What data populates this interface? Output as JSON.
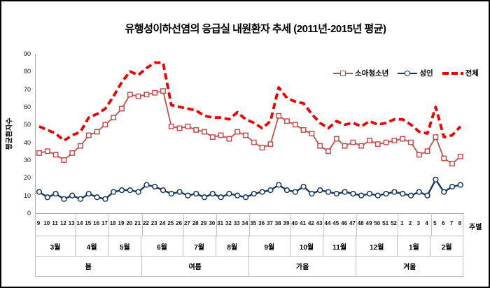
{
  "title": "유행성이하선염의 응급실 내원환자 추세 (2011년-2015년 평균)",
  "legend": {
    "children_label": "소아청소년",
    "adults_label": "성인",
    "total_label": "전체"
  },
  "colors": {
    "children": "#C0504D",
    "adults": "#17375E",
    "total": "#EE0000",
    "axis": "#A6A6A6",
    "table_border": "#BFBFBF",
    "text": "#000000"
  },
  "chart_data": {
    "type": "line",
    "title": "유행성이하선염의 응급실 내원환자 추세 (2011년-2015년 평균)",
    "xlabel": "주별",
    "ylabel": "평균환자수",
    "ylim": [
      0,
      90
    ],
    "ytick_step": 10,
    "yticks": [
      "0",
      "10",
      "20",
      "30",
      "40",
      "50",
      "60",
      "70",
      "80",
      "90"
    ],
    "grid": false,
    "legend_position": "top-right",
    "categories": [
      "9",
      "10",
      "11",
      "12",
      "13",
      "14",
      "15",
      "16",
      "17",
      "18",
      "19",
      "20",
      "21",
      "22",
      "23",
      "24",
      "25",
      "26",
      "27",
      "28",
      "29",
      "30",
      "31",
      "32",
      "33",
      "34",
      "35",
      "36",
      "37",
      "38",
      "39",
      "40",
      "41",
      "42",
      "43",
      "44",
      "45",
      "46",
      "47",
      "48",
      "49",
      "50",
      "51",
      "52",
      "1",
      "2",
      "3",
      "4",
      "5",
      "6",
      "7",
      "8"
    ],
    "series": [
      {
        "name": "소아청소년",
        "style": "solid-square-marker",
        "color": "#C0504D",
        "values": [
          34,
          35,
          33,
          30,
          34,
          38,
          44,
          46,
          50,
          54,
          59,
          67,
          66,
          67,
          68,
          69,
          49,
          48,
          49,
          47,
          46,
          43,
          44,
          42,
          46,
          44,
          40,
          37,
          39,
          55,
          52,
          50,
          47,
          45,
          38,
          35,
          42,
          38,
          40,
          38,
          41,
          39,
          40,
          41,
          42,
          40,
          33,
          35,
          43,
          31,
          28,
          32
        ]
      },
      {
        "name": "성인",
        "style": "solid-circle-marker",
        "color": "#17375E",
        "values": [
          12,
          9,
          11,
          8,
          10,
          8,
          11,
          9,
          8,
          12,
          13,
          13,
          12,
          16,
          15,
          13,
          11,
          12,
          10,
          11,
          9,
          11,
          9,
          11,
          10,
          9,
          11,
          12,
          13,
          16,
          13,
          12,
          15,
          11,
          13,
          12,
          11,
          12,
          11,
          10,
          11,
          10,
          11,
          12,
          11,
          10,
          12,
          10,
          19,
          12,
          15,
          16
        ]
      },
      {
        "name": "전체",
        "style": "dashed",
        "color": "#EE0000",
        "values": [
          49,
          47,
          45,
          41,
          44,
          46,
          54,
          56,
          59,
          66,
          74,
          80,
          78,
          82,
          85,
          85,
          61,
          60,
          59,
          58,
          55,
          54,
          54,
          53,
          57,
          53,
          51,
          48,
          52,
          71,
          65,
          63,
          62,
          56,
          51,
          48,
          52,
          50,
          51,
          49,
          52,
          50,
          51,
          53,
          53,
          50,
          46,
          45,
          60,
          43,
          44,
          49
        ]
      }
    ],
    "month_bands": [
      {
        "label": "3월",
        "weeks": 5
      },
      {
        "label": "4월",
        "weeks": 4
      },
      {
        "label": "5월",
        "weeks": 4
      },
      {
        "label": "6월",
        "weeks": 5
      },
      {
        "label": "7월",
        "weeks": 4
      },
      {
        "label": "8월",
        "weeks": 4
      },
      {
        "label": "9월",
        "weeks": 5
      },
      {
        "label": "10월",
        "weeks": 4
      },
      {
        "label": "11월",
        "weeks": 4
      },
      {
        "label": "12월",
        "weeks": 5
      },
      {
        "label": "1월",
        "weeks": 4
      },
      {
        "label": "2월",
        "weeks": 4
      }
    ],
    "season_bands": [
      {
        "label": "봄",
        "months": 3
      },
      {
        "label": "여름",
        "months": 3
      },
      {
        "label": "가을",
        "months": 3
      },
      {
        "label": "겨울",
        "months": 3
      }
    ]
  }
}
